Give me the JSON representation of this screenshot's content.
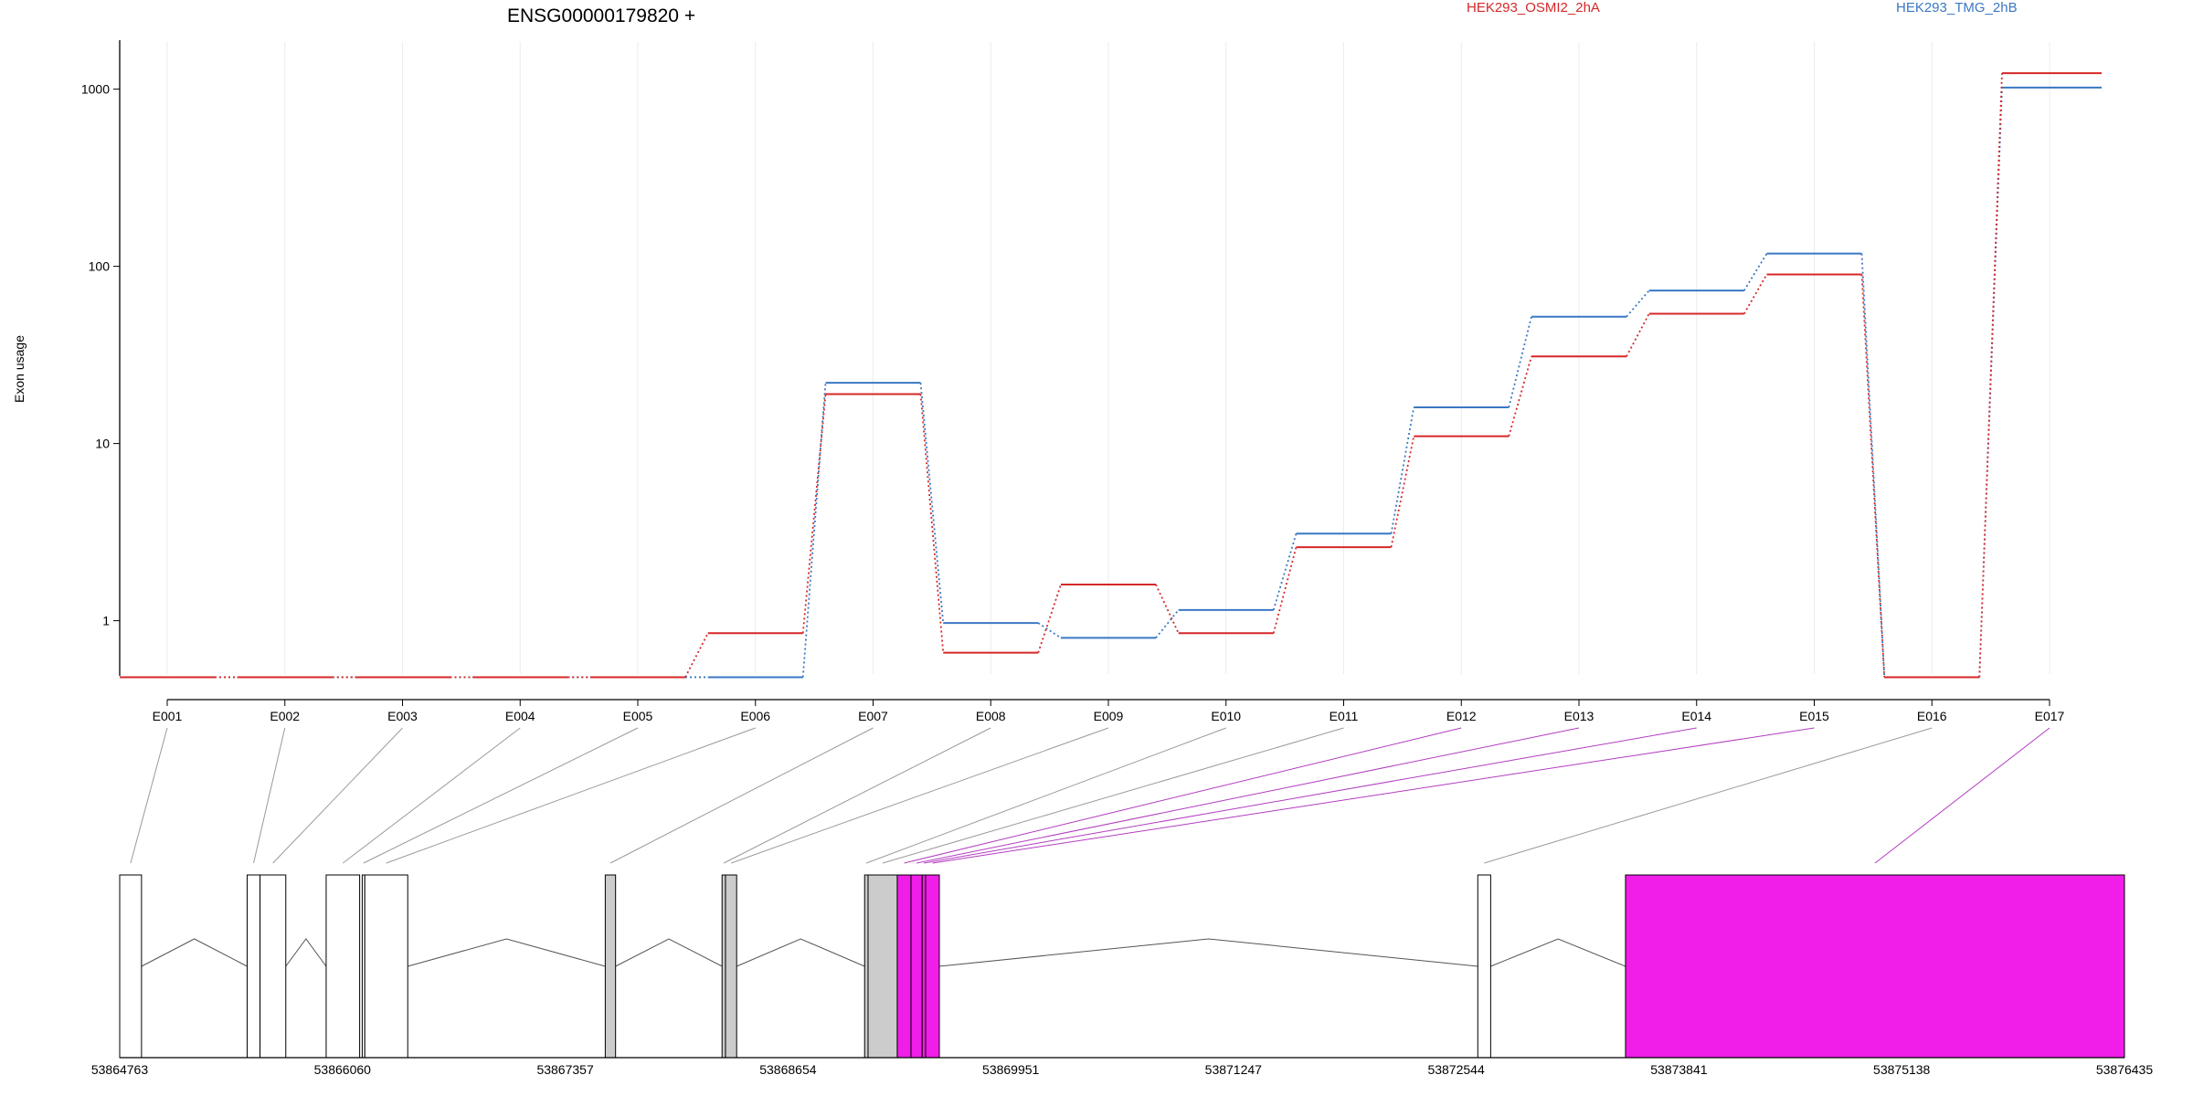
{
  "chart_data": {
    "type": "line",
    "title": "ENSG00000179820 +",
    "ylabel": "Exon usage",
    "yscale": "log",
    "ylim": [
      0.5,
      1600
    ],
    "yticks": [
      1,
      10,
      100,
      1000
    ],
    "ytick_labels": [
      "1",
      "10",
      "100",
      "1000"
    ],
    "grid": "vertical",
    "legend_placement": "top",
    "categories": [
      "E001",
      "E002",
      "E003",
      "E004",
      "E005",
      "E006",
      "E007",
      "E008",
      "E009",
      "E010",
      "E011",
      "E012",
      "E013",
      "E014",
      "E015",
      "E016",
      "E017"
    ],
    "series": [
      {
        "name": "HEK293_OSMI2_2hA",
        "color": "#d62728",
        "values": [
          0.48,
          0.48,
          0.48,
          0.48,
          0.48,
          0.85,
          19,
          0.66,
          1.6,
          0.85,
          2.6,
          11,
          31,
          54,
          90,
          0.48,
          1230
        ]
      },
      {
        "name": "HEK293_TMG_2hB",
        "color": "#3a78c3",
        "values": [
          0.48,
          0.48,
          0.48,
          0.48,
          0.48,
          0.48,
          22,
          0.97,
          0.8,
          1.15,
          3.1,
          16,
          52,
          73,
          118,
          0.48,
          1020
        ]
      }
    ],
    "gene_model": {
      "start": 53864763,
      "end": 53876435,
      "axis_ticks": [
        53864763,
        53866060,
        53867357,
        53868654,
        53869951,
        53871247,
        53872544,
        53873841,
        53875138,
        53876435
      ],
      "axis_tick_labels": [
        "53864763",
        "53866060",
        "53867357",
        "53868654",
        "53869951",
        "53871247",
        "53872544",
        "53873841",
        "53875138",
        "53876435"
      ],
      "exons": [
        {
          "id": "E001",
          "start": 53864763,
          "end": 53864890,
          "fill": "#ffffff"
        },
        {
          "id": "E002",
          "start": 53865505,
          "end": 53865580,
          "fill": "#ffffff"
        },
        {
          "id": "E003",
          "start": 53865580,
          "end": 53865730,
          "fill": "#ffffff"
        },
        {
          "id": "E004",
          "start": 53865965,
          "end": 53866160,
          "fill": "#ffffff"
        },
        {
          "id": "E005",
          "start": 53866175,
          "end": 53866190,
          "fill": "#ffffff"
        },
        {
          "id": "E006",
          "start": 53866190,
          "end": 53866440,
          "fill": "#ffffff"
        },
        {
          "id": "E007",
          "start": 53867590,
          "end": 53867650,
          "fill": "#cccccc"
        },
        {
          "id": "E008",
          "start": 53868270,
          "end": 53868290,
          "fill": "#cccccc"
        },
        {
          "id": "E009",
          "start": 53868290,
          "end": 53868355,
          "fill": "#cccccc"
        },
        {
          "id": "E010",
          "start": 53869100,
          "end": 53869120,
          "fill": "#cccccc"
        },
        {
          "id": "E011",
          "start": 53869120,
          "end": 53869290,
          "fill": "#cccccc"
        },
        {
          "id": "E012",
          "start": 53869290,
          "end": 53869370,
          "fill": "#f01ee8"
        },
        {
          "id": "E013",
          "start": 53869370,
          "end": 53869435,
          "fill": "#f01ee8"
        },
        {
          "id": "E014",
          "start": 53869435,
          "end": 53869455,
          "fill": "#f01ee8"
        },
        {
          "id": "E015",
          "start": 53869455,
          "end": 53869535,
          "fill": "#f01ee8"
        },
        {
          "id": "E016",
          "start": 53872670,
          "end": 53872745,
          "fill": "#ffffff"
        },
        {
          "id": "E017",
          "start": 53873530,
          "end": 53876435,
          "fill": "#f01ee8"
        }
      ],
      "significant_exons": [
        "E012",
        "E013",
        "E014",
        "E015",
        "E017"
      ]
    }
  }
}
